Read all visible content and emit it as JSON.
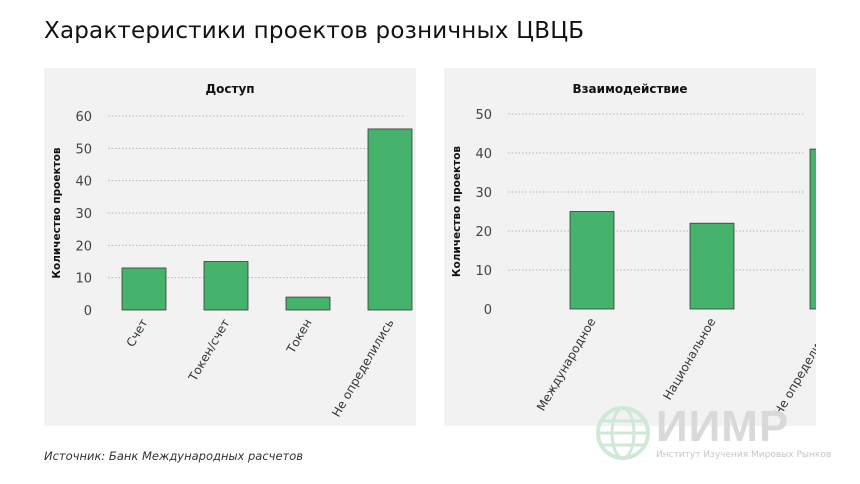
{
  "page": {
    "title": "Характеристики проектов розничных ЦВЦБ",
    "source": "Источник: Банк Международных расчетов"
  },
  "logo": {
    "name": "ИИМР",
    "subtitle": "Институт Изучения Мировых Рынков"
  },
  "colors": {
    "bar": "#45b36b",
    "bar_border": "#3a3a3a",
    "panel_bg": "#f2f2f2",
    "grid": "#b5b5b5"
  },
  "chart_data": [
    {
      "type": "bar",
      "title": "Доступ",
      "ylabel": "Количество проектов",
      "xlabel": "",
      "categories": [
        "Счет",
        "Токен/счет",
        "Токен",
        "Не определились"
      ],
      "values": [
        13,
        15,
        4,
        56
      ],
      "ylim": [
        0,
        60
      ],
      "yticks": [
        0,
        10,
        20,
        30,
        40,
        50,
        60
      ],
      "grid": true
    },
    {
      "type": "bar",
      "title": "Взаимодействие",
      "ylabel": "Количество проектов",
      "xlabel": "",
      "categories": [
        "Международное",
        "Национальное",
        "Не определились"
      ],
      "values": [
        25,
        22,
        41
      ],
      "ylim": [
        0,
        50
      ],
      "yticks": [
        0,
        10,
        20,
        30,
        40,
        50
      ],
      "grid": true
    }
  ]
}
